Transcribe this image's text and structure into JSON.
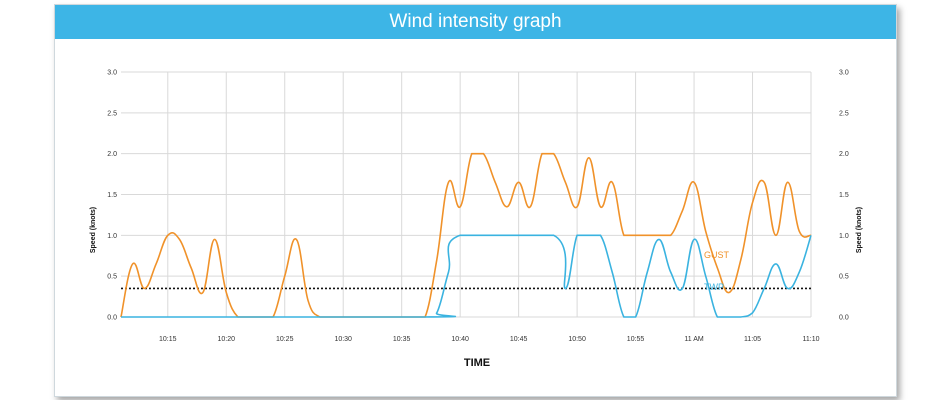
{
  "header": {
    "title": "Wind intensity graph"
  },
  "colors": {
    "header_bg": "#3db5e6",
    "gust": "#f0922a",
    "twp": "#3ab3e0",
    "threshold": "#111111",
    "grid": "#d9d9d9"
  },
  "chart_data": {
    "type": "line",
    "title": "",
    "xlabel": "TIME",
    "ylabel_left": "Speed (knots)",
    "ylabel_right": "Speed (knots)",
    "ylim": [
      0,
      3
    ],
    "xlim": [
      "10:11",
      "11:10"
    ],
    "grid": true,
    "y_ticks": [
      "0.0",
      "0.5",
      "1.0",
      "1.5",
      "2.0",
      "2.5",
      "3.0"
    ],
    "x_ticks": [
      {
        "t": "10:15",
        "label": "10:15"
      },
      {
        "t": "10:20",
        "label": "10:20"
      },
      {
        "t": "10:25",
        "label": "10:25"
      },
      {
        "t": "10:30",
        "label": "10:30"
      },
      {
        "t": "10:35",
        "label": "10:35"
      },
      {
        "t": "10:40",
        "label": "10:40"
      },
      {
        "t": "10:45",
        "label": "10:45"
      },
      {
        "t": "10:50",
        "label": "10:50"
      },
      {
        "t": "10:55",
        "label": "10:55"
      },
      {
        "t": "11:00",
        "label": "11 AM"
      },
      {
        "t": "11:05",
        "label": "11:05"
      },
      {
        "t": "11:10",
        "label": "11:10"
      }
    ],
    "threshold": 0.35,
    "series": [
      {
        "name": "GUST",
        "x": [
          "10:11",
          "10:12",
          "10:13",
          "10:14",
          "10:15",
          "10:16",
          "10:17",
          "10:18",
          "10:19",
          "10:20",
          "10:21",
          "10:22",
          "10:23",
          "10:24",
          "10:25",
          "10:26",
          "10:27",
          "10:28",
          "10:29",
          "10:30",
          "10:31",
          "10:32",
          "10:33",
          "10:34",
          "10:35",
          "10:36",
          "10:37",
          "10:38",
          "10:39",
          "10:40",
          "10:41",
          "10:42",
          "10:43",
          "10:44",
          "10:45",
          "10:46",
          "10:47",
          "10:48",
          "10:49",
          "10:50",
          "10:51",
          "10:52",
          "10:53",
          "10:54",
          "10:55",
          "10:56",
          "10:57",
          "10:58",
          "10:59",
          "11:00",
          "11:01",
          "11:02",
          "11:03",
          "11:04",
          "11:05",
          "11:06",
          "11:07",
          "11:08",
          "11:09",
          "11:10"
        ],
        "y": [
          0,
          0.65,
          0.35,
          0.65,
          1.0,
          0.95,
          0.6,
          0.3,
          0.95,
          0.3,
          0,
          0,
          0,
          0,
          0.5,
          0.95,
          0.2,
          0,
          0,
          0,
          0,
          0,
          0,
          0,
          0,
          0,
          0,
          0.7,
          1.65,
          1.35,
          2.0,
          2.0,
          1.65,
          1.35,
          1.65,
          1.35,
          2.0,
          2.0,
          1.65,
          1.35,
          1.95,
          1.35,
          1.65,
          1.0,
          1.0,
          1.0,
          1.0,
          1.0,
          1.3,
          1.65,
          1.05,
          0.6,
          0.3,
          0.7,
          1.4,
          1.65,
          1.0,
          1.65,
          1.05,
          1.0
        ]
      },
      {
        "name": "TWP",
        "x": [
          "10:11",
          "10:37",
          "10:38",
          "10:39",
          "10:40",
          "10:48",
          "10:49",
          "10:50",
          "10:51",
          "10:52",
          "10:53",
          "10:54",
          "10:55",
          "10:56",
          "10:57",
          "10:58",
          "10:59",
          "11:00",
          "11:01",
          "11:02",
          "11:03",
          "11:04",
          "11:05",
          "11:06",
          "11:07",
          "11:08",
          "11:09",
          "11:10"
        ],
        "y": [
          0,
          0,
          0.05,
          0.55,
          1.0,
          1.0,
          0.35,
          1.0,
          1.0,
          1.0,
          0.55,
          0,
          0,
          0.55,
          0.95,
          0.55,
          0.35,
          0.95,
          0.5,
          0,
          0,
          0,
          0.05,
          0.35,
          0.65,
          0.35,
          0.55,
          1.0
        ]
      }
    ]
  }
}
